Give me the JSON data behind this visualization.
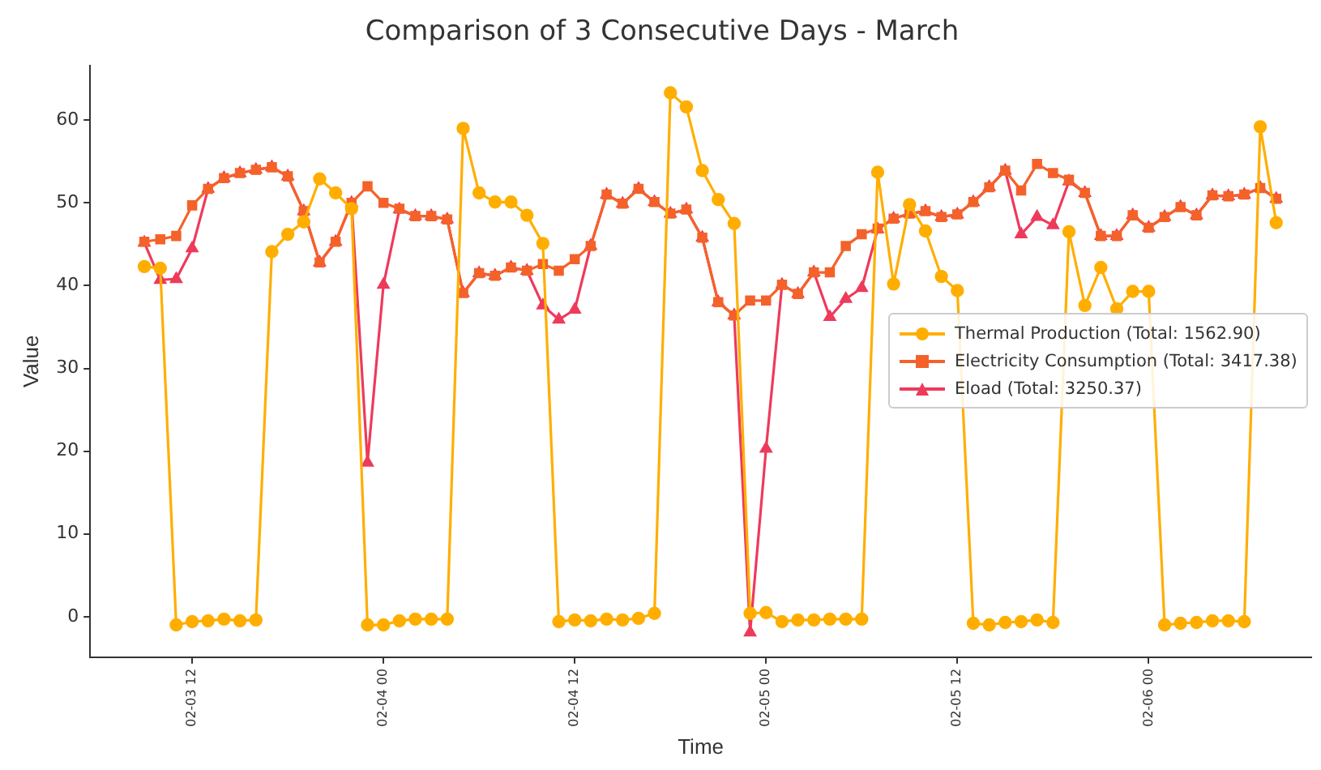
{
  "chart_data": {
    "type": "line",
    "title": "Comparison of 3 Consecutive Days - March",
    "xlabel": "Time",
    "ylabel": "Value",
    "x": [
      "--02-03T09:00",
      "--02-03T10:00",
      "--02-03T11:00",
      "--02-03T12:00",
      "--02-03T13:00",
      "--02-03T14:00",
      "--02-03T15:00",
      "--02-03T16:00",
      "--02-03T17:00",
      "--02-03T18:00",
      "--02-03T19:00",
      "--02-03T20:00",
      "--02-03T21:00",
      "--02-03T22:00",
      "--02-03T23:00",
      "--02-04T00:00",
      "--02-04T01:00",
      "--02-04T02:00",
      "--02-04T03:00",
      "--02-04T04:00",
      "--02-04T05:00",
      "--02-04T06:00",
      "--02-04T07:00",
      "--02-04T08:00",
      "--02-04T09:00",
      "--02-04T10:00",
      "--02-04T11:00",
      "--02-04T12:00",
      "--02-04T13:00",
      "--02-04T14:00",
      "--02-04T15:00",
      "--02-04T16:00",
      "--02-04T17:00",
      "--02-04T18:00",
      "--02-04T19:00",
      "--02-04T20:00",
      "--02-04T21:00",
      "--02-04T22:00",
      "--02-04T23:00",
      "--02-05T00:00",
      "--02-05T01:00",
      "--02-05T02:00",
      "--02-05T03:00",
      "--02-05T04:00",
      "--02-05T05:00",
      "--02-05T06:00",
      "--02-05T07:00",
      "--02-05T08:00",
      "--02-05T09:00",
      "--02-05T10:00",
      "--02-05T11:00",
      "--02-05T12:00",
      "--02-05T13:00",
      "--02-05T14:00",
      "--02-05T15:00",
      "--02-05T16:00",
      "--02-05T17:00",
      "--02-05T18:00",
      "--02-05T19:00",
      "--02-05T20:00",
      "--02-05T21:00",
      "--02-05T22:00",
      "--02-05T23:00",
      "--02-06T00:00",
      "--02-06T01:00",
      "--02-06T02:00",
      "--02-06T03:00",
      "--02-06T04:00",
      "--02-06T05:00",
      "--02-06T06:00",
      "--02-06T07:00",
      "--02-06T08:00"
    ],
    "xlim": [
      "--02-03T05:36",
      "--02-06T10:12"
    ],
    "xticks": [
      {
        "value": "--02-03T12:00",
        "label": "02-03 12"
      },
      {
        "value": "--02-04T00:00",
        "label": "02-04 00"
      },
      {
        "value": "--02-04T12:00",
        "label": "02-04 12"
      },
      {
        "value": "--02-05T00:00",
        "label": "02-05 00"
      },
      {
        "value": "--02-05T12:00",
        "label": "02-05 12"
      },
      {
        "value": "--02-06T00:00",
        "label": "02-06 00"
      }
    ],
    "ylim": [
      -4.9,
      66.6
    ],
    "yticks": [
      0,
      10,
      20,
      30,
      40,
      50,
      60
    ],
    "grid": false,
    "legend": "center right",
    "series": [
      {
        "name": "Thermal Production (Total: 1562.90)",
        "color": "#ffae00",
        "marker": "circle",
        "values": [
          42.3,
          42.1,
          -1.0,
          -0.6,
          -0.5,
          -0.3,
          -0.5,
          -0.4,
          44.1,
          46.2,
          47.7,
          52.9,
          51.2,
          49.3,
          -1.0,
          -1.0,
          -0.5,
          -0.3,
          -0.3,
          -0.3,
          59.0,
          51.2,
          50.1,
          50.1,
          48.5,
          45.1,
          -0.6,
          -0.4,
          -0.5,
          -0.3,
          -0.4,
          -0.2,
          0.4,
          63.3,
          61.6,
          53.9,
          50.4,
          47.5,
          0.4,
          0.5,
          -0.6,
          -0.4,
          -0.4,
          -0.3,
          -0.3,
          -0.3,
          53.7,
          40.2,
          49.8,
          46.6,
          41.1,
          39.4,
          -0.8,
          -1.0,
          -0.7,
          -0.6,
          -0.4,
          -0.7,
          46.5,
          37.6,
          42.2,
          37.2,
          39.3,
          39.3,
          -1.0,
          -0.8,
          -0.7,
          -0.5,
          -0.5,
          -0.6,
          59.2,
          47.6
        ]
      },
      {
        "name": "Electricity Consumption (Total: 3417.38)",
        "color": "#f4622a",
        "marker": "square",
        "values": [
          45.3,
          45.6,
          46.0,
          49.7,
          51.7,
          53.0,
          53.6,
          54.0,
          54.3,
          53.2,
          49.0,
          42.8,
          45.3,
          50.0,
          52.0,
          50.0,
          49.3,
          48.4,
          48.4,
          48.0,
          39.1,
          41.5,
          41.2,
          42.2,
          41.8,
          42.6,
          41.8,
          43.2,
          44.8,
          51.0,
          49.9,
          51.7,
          50.1,
          48.7,
          49.2,
          45.8,
          38.0,
          36.4,
          38.2,
          38.2,
          40.1,
          39.0,
          41.6,
          41.6,
          44.8,
          46.2,
          46.9,
          48.1,
          48.7,
          49.0,
          48.3,
          48.6,
          50.1,
          51.9,
          53.9,
          51.5,
          54.7,
          53.6,
          52.8,
          51.2,
          46.0,
          46.0,
          48.5,
          47.0,
          48.3,
          49.5,
          48.5,
          50.9,
          50.8,
          51.0,
          51.8,
          50.5
        ]
      },
      {
        "name": "Eload (Total: 3250.37)",
        "color": "#ee3a5b",
        "marker": "triangle",
        "values": [
          45.2,
          40.7,
          40.8,
          44.5,
          51.7,
          53.0,
          53.6,
          54.0,
          54.3,
          53.2,
          49.0,
          42.8,
          45.3,
          50.0,
          18.6,
          40.1,
          49.2,
          48.4,
          48.4,
          48.0,
          39.1,
          41.5,
          41.2,
          42.2,
          41.8,
          37.6,
          35.9,
          37.1,
          44.8,
          51.0,
          49.9,
          51.7,
          50.1,
          48.7,
          49.2,
          45.8,
          38.0,
          36.4,
          -1.9,
          20.3,
          40.1,
          39.0,
          41.6,
          36.2,
          38.4,
          39.7,
          46.8,
          48.1,
          48.7,
          49.0,
          48.3,
          48.6,
          50.1,
          51.9,
          53.9,
          46.2,
          48.3,
          47.3,
          52.6,
          51.2,
          46.0,
          46.0,
          48.5,
          47.0,
          48.3,
          49.5,
          48.5,
          50.9,
          50.8,
          51.0,
          51.8,
          50.5
        ]
      }
    ]
  }
}
